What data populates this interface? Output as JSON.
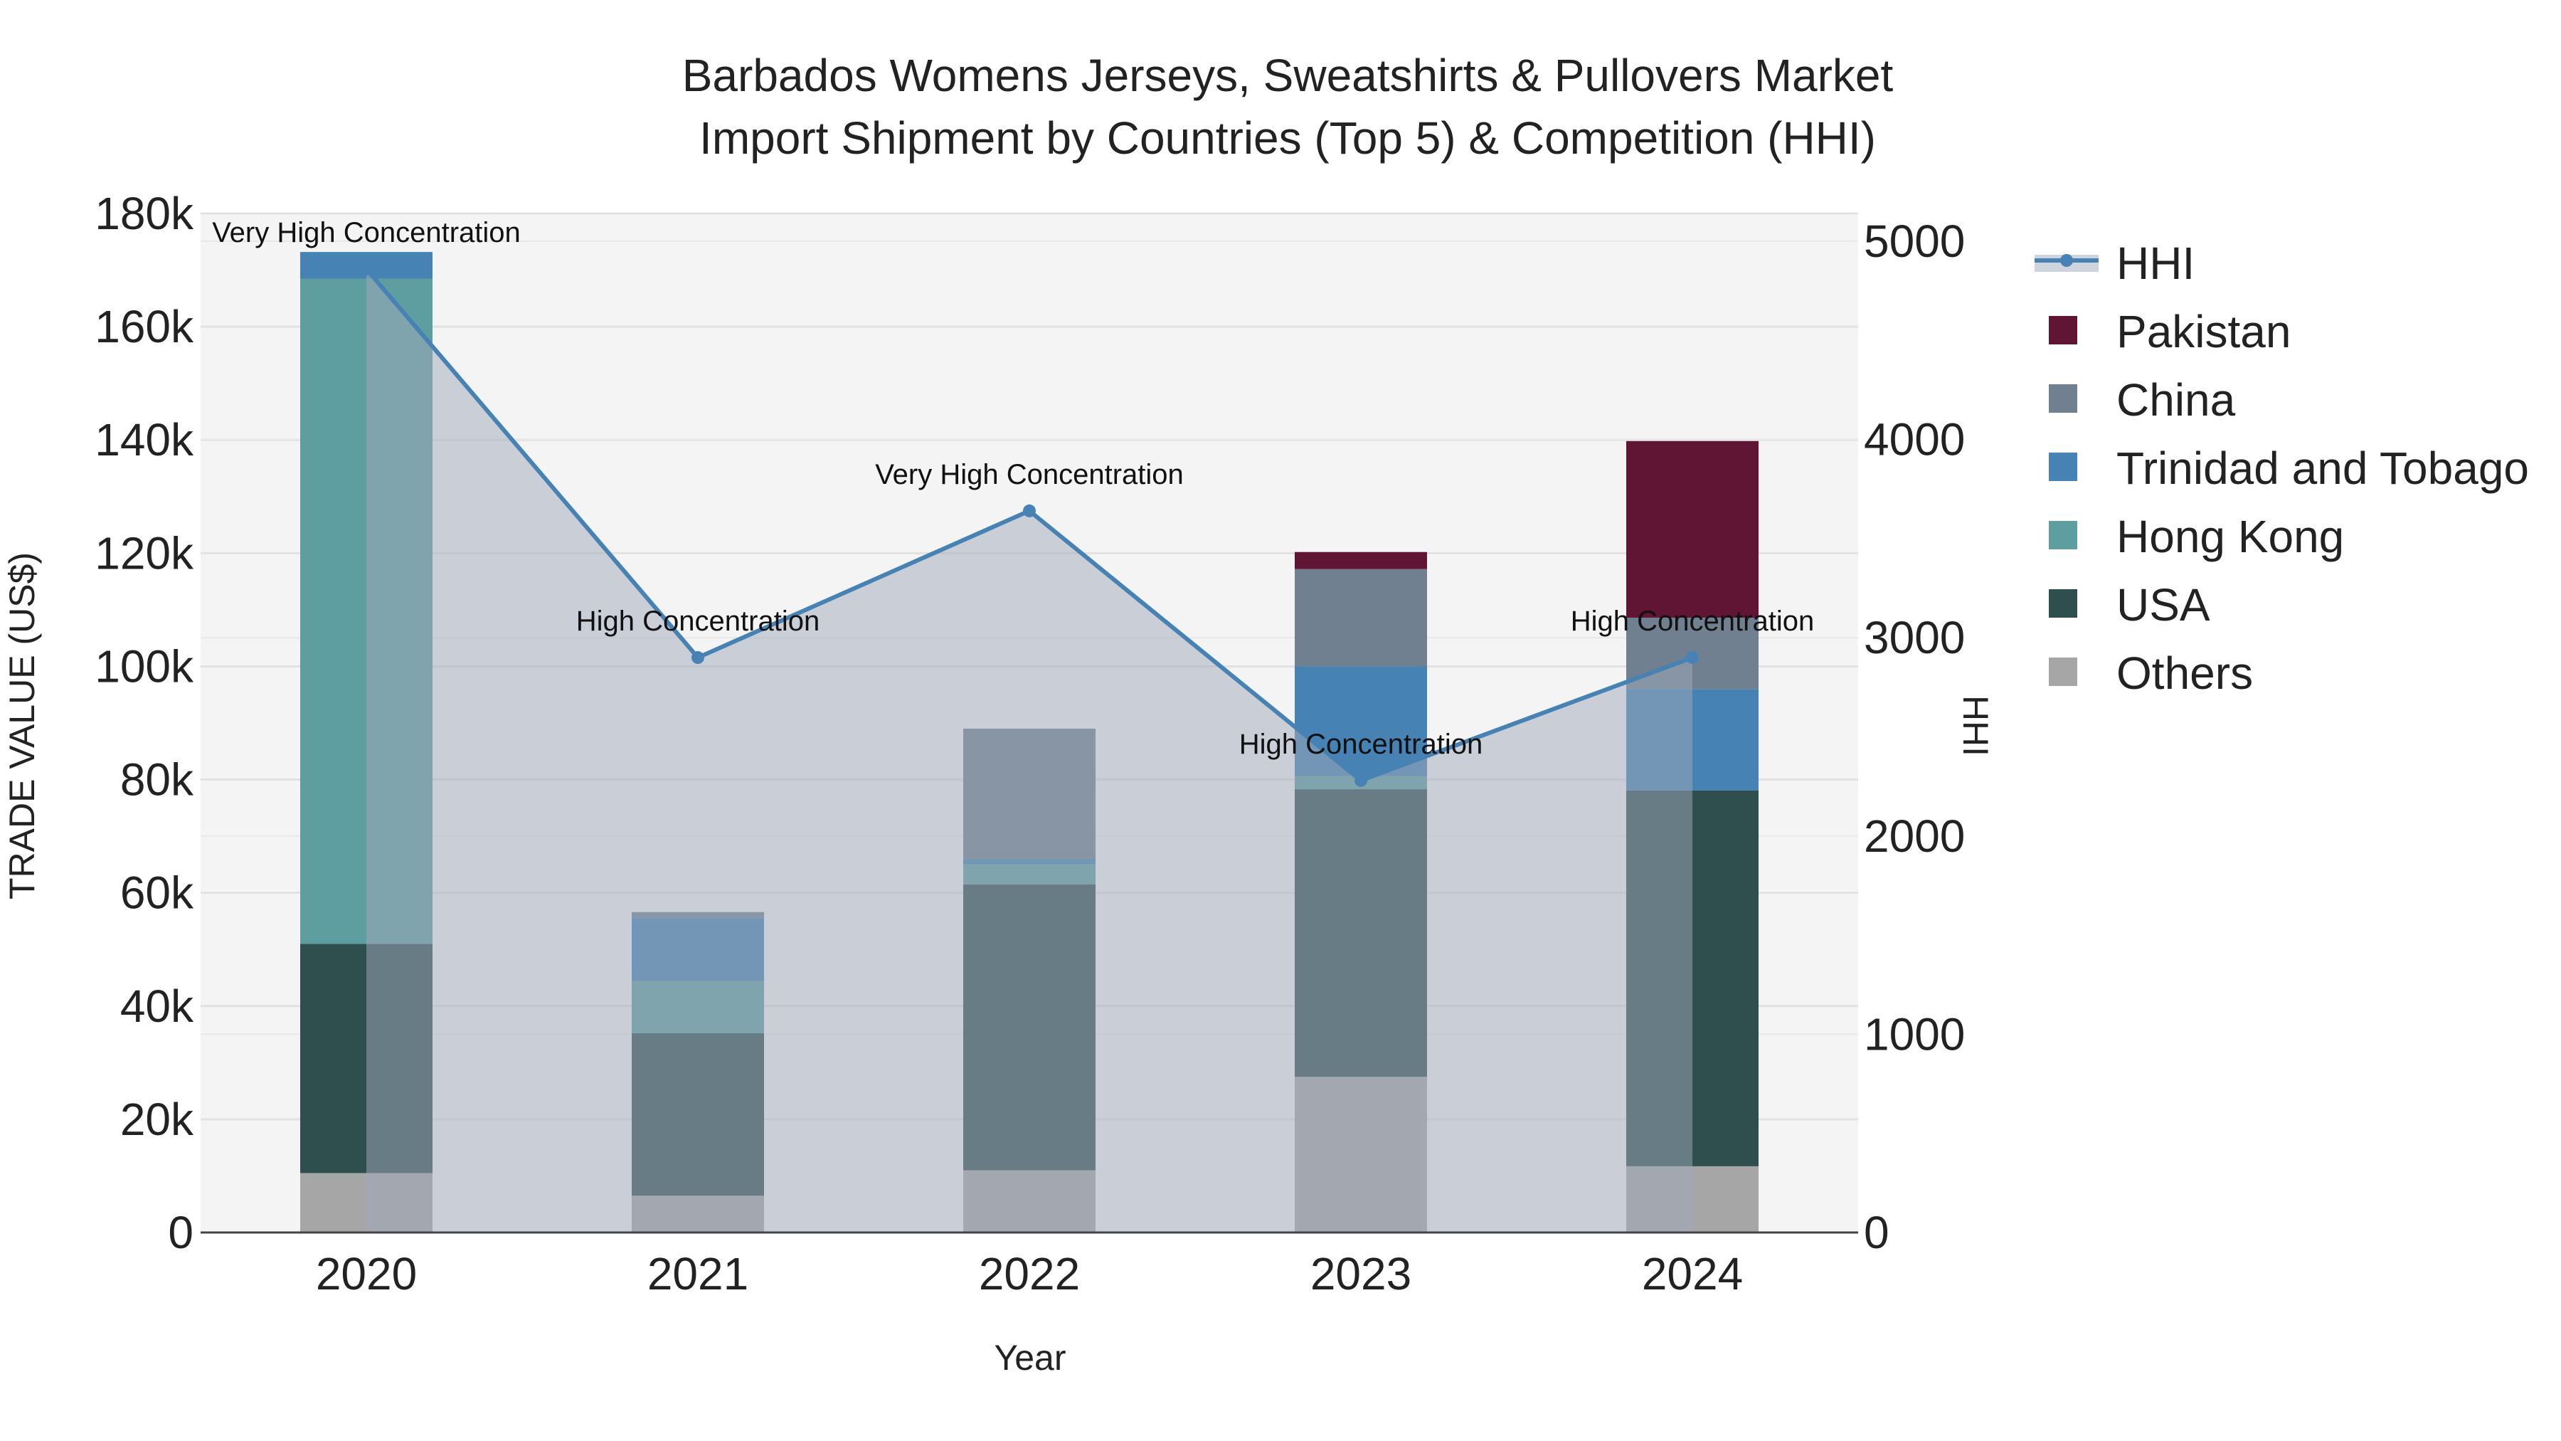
{
  "chart_data": {
    "type": "bar",
    "stacked": true,
    "title": [
      "Barbados Womens Jerseys, Sweatshirts & Pullovers Market",
      "Import Shipment by Countries (Top 5) & Competition (HHI)"
    ],
    "xlabel": "Year",
    "ylabel": "TRADE VALUE (US$)",
    "y2label": "HHI",
    "categories": [
      "2020",
      "2021",
      "2022",
      "2023",
      "2024"
    ],
    "ylim": [
      0,
      180000
    ],
    "y2lim": [
      0,
      5140
    ],
    "yticks": [
      0,
      20000,
      40000,
      60000,
      80000,
      100000,
      120000,
      140000,
      160000,
      180000
    ],
    "ytick_labels": [
      "0",
      "20k",
      "40k",
      "60k",
      "80k",
      "100k",
      "120k",
      "140k",
      "160k",
      "180k"
    ],
    "y2ticks": [
      0,
      1000,
      2000,
      3000,
      4000,
      5000
    ],
    "y2tick_labels": [
      "0",
      "1000",
      "2000",
      "3000",
      "4000",
      "5000"
    ],
    "series": [
      {
        "name": "Others",
        "color": "#a6a6a6",
        "values": [
          10500,
          6500,
          11000,
          27500,
          11700
        ]
      },
      {
        "name": "USA",
        "color": "#2f4f4f",
        "values": [
          40500,
          28700,
          50500,
          50800,
          66400
        ]
      },
      {
        "name": "Hong Kong",
        "color": "#5f9ea0",
        "values": [
          117500,
          9200,
          3500,
          2300,
          0
        ]
      },
      {
        "name": "Trinidad and Tobago",
        "color": "#4682b4",
        "values": [
          4700,
          11200,
          1000,
          19400,
          17900
        ]
      },
      {
        "name": "China",
        "color": "#708090",
        "values": [
          0,
          1000,
          23000,
          17200,
          12600
        ]
      },
      {
        "name": "Pakistan",
        "color": "#601535",
        "values": [
          0,
          0,
          0,
          3000,
          31200
        ]
      }
    ],
    "hhi": {
      "name": "HHI",
      "color": "#4682b4",
      "values": [
        4860,
        2900,
        3640,
        2280,
        2900
      ],
      "labels": [
        "Very High Concentration",
        "High Concentration",
        "Very High Concentration",
        "High Concentration",
        "High Concentration"
      ]
    },
    "legend": [
      "HHI",
      "Pakistan",
      "China",
      "Trinidad and Tobago",
      "Hong Kong",
      "USA",
      "Others"
    ]
  }
}
